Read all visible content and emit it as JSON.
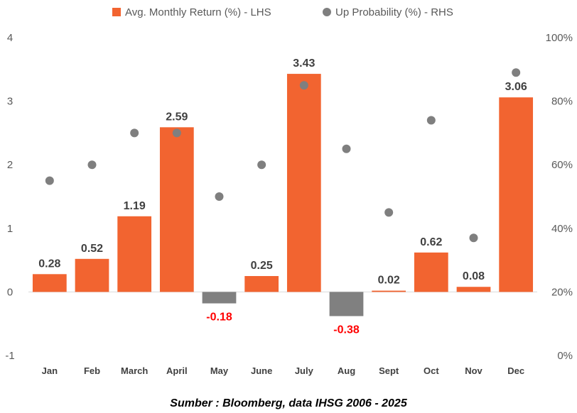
{
  "colors": {
    "positive_bar": "#F26430",
    "negative_bar": "#808080",
    "point": "#7F7F7F",
    "negative_label": "#FF0000",
    "positive_label": "#404040"
  },
  "legend": {
    "bar_label": "Avg. Monthly Return (%) - LHS",
    "point_label": "Up Probability (%) - RHS",
    "placement": "top-center"
  },
  "source_note": "Sumber : Bloomberg, data IHSG 2006 - 2025",
  "chart_data": {
    "type": "bar",
    "categories": [
      "Jan",
      "Feb",
      "March",
      "April",
      "May",
      "June",
      "July",
      "Aug",
      "Sept",
      "Oct",
      "Nov",
      "Dec"
    ],
    "series": [
      {
        "name": "Avg. Monthly Return (%) - LHS",
        "type": "bar",
        "axis": "left",
        "values": [
          0.28,
          0.52,
          1.19,
          2.59,
          -0.18,
          0.25,
          3.43,
          -0.38,
          0.02,
          0.62,
          0.08,
          3.06
        ],
        "labels": [
          "0.28",
          "0.52",
          "1.19",
          "2.59",
          "-0.18",
          "0.25",
          "3.43",
          "-0.38",
          "0.02",
          "0.62",
          "0.08",
          "3.06"
        ]
      },
      {
        "name": "Up Probability (%) - RHS",
        "type": "scatter",
        "axis": "right",
        "values": [
          55,
          60,
          70,
          70,
          50,
          60,
          85,
          65,
          45,
          74,
          37,
          89
        ]
      }
    ],
    "left_axis": {
      "ylim": [
        -1,
        4
      ],
      "ticks": [
        -1,
        0,
        1,
        2,
        3,
        4
      ],
      "tick_labels": [
        "-1",
        "0",
        "1",
        "2",
        "3",
        "4"
      ]
    },
    "right_axis": {
      "ylim": [
        0,
        100
      ],
      "ticks": [
        0,
        20,
        40,
        60,
        80,
        100
      ],
      "tick_labels": [
        "0%",
        "20%",
        "40%",
        "60%",
        "80%",
        "100%"
      ]
    },
    "grid": false,
    "title": "",
    "xlabel": "",
    "ylabel": ""
  }
}
